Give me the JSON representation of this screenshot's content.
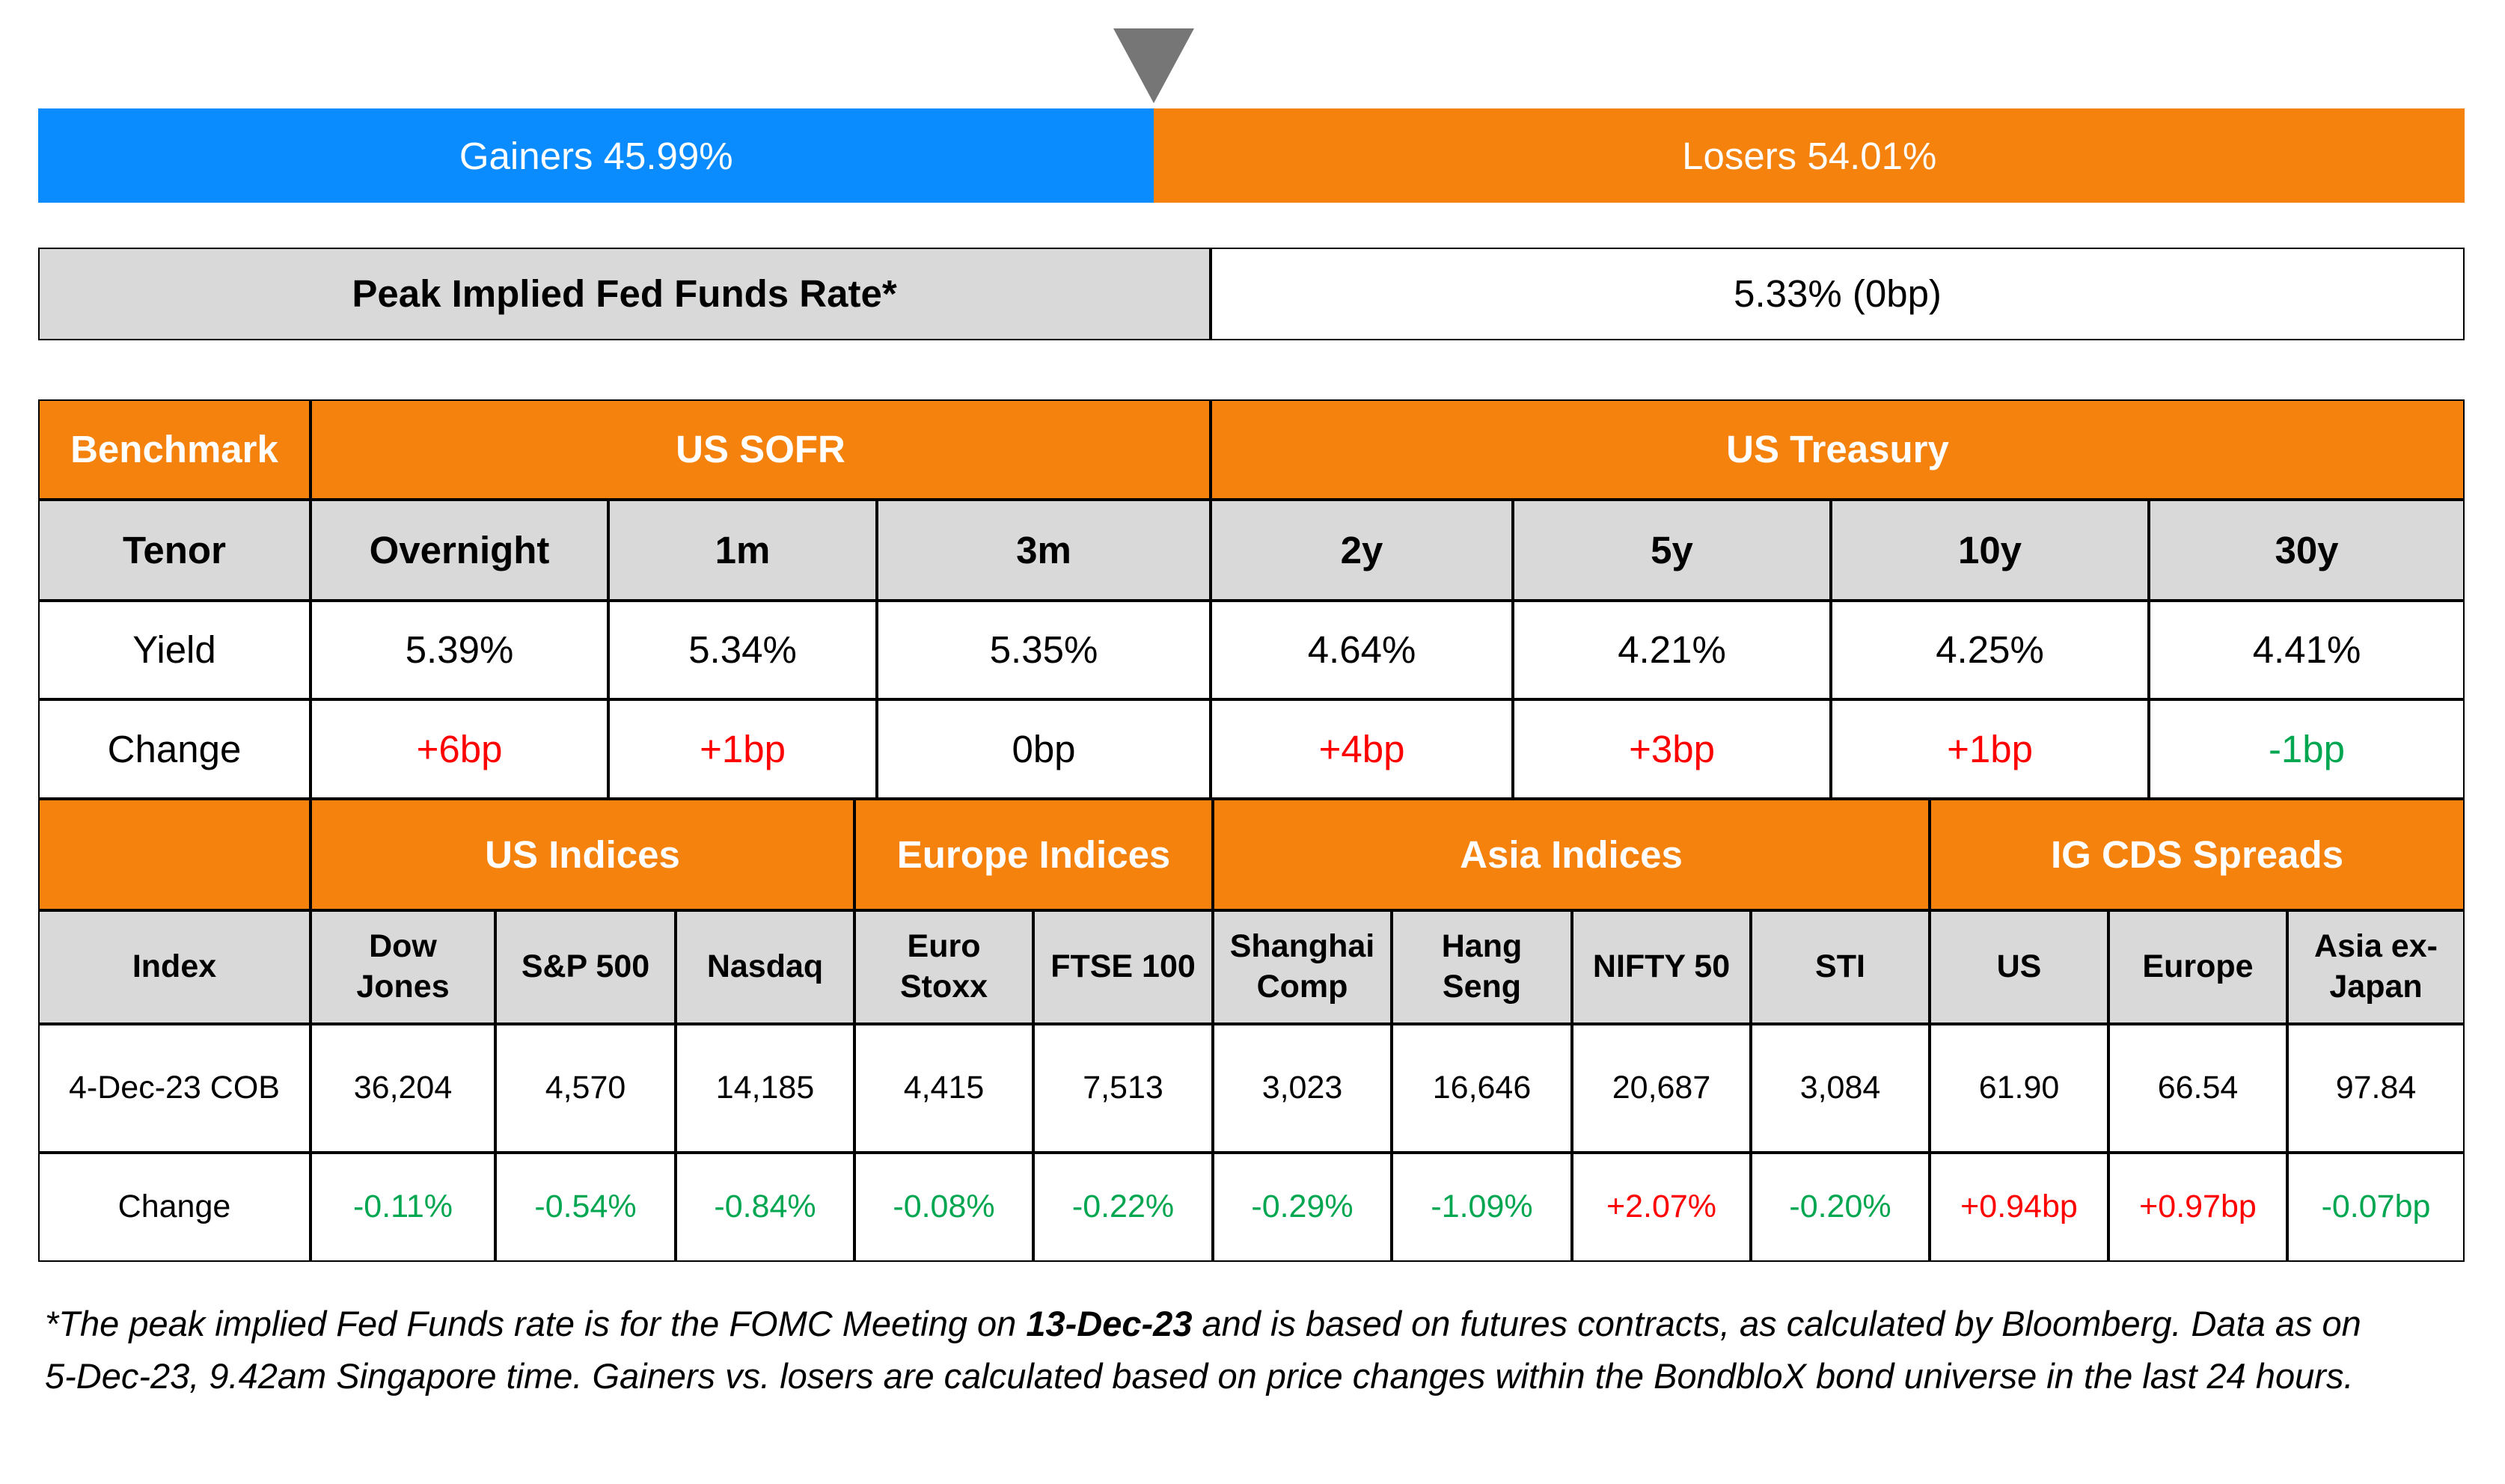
{
  "breadth": {
    "gainers": {
      "label": "Gainers 45.99%",
      "value": 45.99
    },
    "losers": {
      "label": "Losers 54.01%",
      "value": 54.01
    }
  },
  "fed_rate": {
    "label": "Peak Implied Fed Funds Rate*",
    "value": "5.33% (0bp)"
  },
  "rates_table": {
    "header": [
      "Benchmark",
      "US SOFR",
      "US Treasury"
    ],
    "rows": [
      [
        "Tenor",
        "Overnight",
        "1m",
        "3m",
        "2y",
        "5y",
        "10y",
        "30y"
      ],
      [
        "Yield",
        "5.39%",
        "5.34%",
        "5.35%",
        "4.64%",
        "4.21%",
        "4.25%",
        "4.41%"
      ],
      [
        "Change",
        "+6bp",
        "+1bp",
        "0bp",
        "+4bp",
        "+3bp",
        "+1bp",
        "-1bp"
      ]
    ]
  },
  "indices_table": {
    "groups": [
      "US Indices",
      "Europe Indices",
      "Asia Indices",
      "IG CDS Spreads"
    ],
    "rows": [
      [
        "Index",
        "Dow\nJones",
        "S&P 500",
        "Nasdaq",
        "Euro\nStoxx",
        "FTSE 100",
        "Shanghai\nComp",
        "Hang\nSeng",
        "NIFTY 50",
        "STI",
        "US",
        "Europe",
        "Asia ex-\nJapan"
      ],
      [
        "4-Dec-23 COB",
        "36,204",
        "4,570",
        "14,185",
        "4,415",
        "7,513",
        "3,023",
        "16,646",
        "20,687",
        "3,084",
        "61.90",
        "66.54",
        "97.84"
      ],
      [
        "Change",
        "-0.11%",
        "-0.54%",
        "-0.84%",
        "-0.08%",
        "-0.22%",
        "-0.29%",
        "-1.09%",
        "+2.07%",
        "-0.20%",
        "+0.94bp",
        "+0.97bp",
        "-0.07bp"
      ]
    ]
  },
  "footnote": [
    "*The peak implied Fed Funds rate is for the FOMC Meeting on ",
    "13-Dec-23",
    " and is based on futures contracts, as calculated by Bloomberg. Data as on 5-Dec-23, 9.42am Singapore time. Gainers vs. losers are calculated based on price changes within the BondbloX bond universe in the last 24 hours."
  ]
}
